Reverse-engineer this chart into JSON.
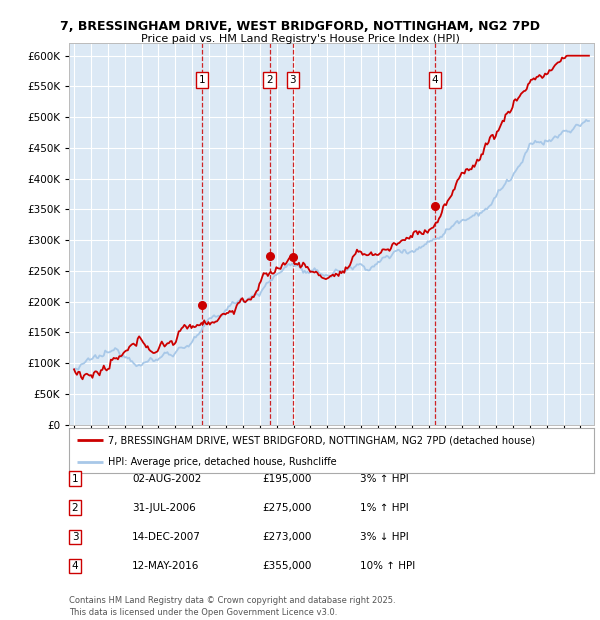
{
  "title_line1": "7, BRESSINGHAM DRIVE, WEST BRIDGFORD, NOTTINGHAM, NG2 7PD",
  "title_line2": "Price paid vs. HM Land Registry's House Price Index (HPI)",
  "background_color": "#ffffff",
  "plot_bg_color": "#dce9f5",
  "grid_color": "#ffffff",
  "sale_dates_num": [
    2002.583,
    2006.583,
    2007.958,
    2016.375
  ],
  "sale_prices": [
    195000,
    275000,
    273000,
    355000
  ],
  "sale_labels": [
    "1",
    "2",
    "3",
    "4"
  ],
  "sale_table": [
    {
      "label": "1",
      "date": "02-AUG-2002",
      "price": "£195,000",
      "change": "3% ↑ HPI"
    },
    {
      "label": "2",
      "date": "31-JUL-2006",
      "price": "£275,000",
      "change": "1% ↑ HPI"
    },
    {
      "label": "3",
      "date": "14-DEC-2007",
      "price": "£273,000",
      "change": "3% ↓ HPI"
    },
    {
      "label": "4",
      "date": "12-MAY-2016",
      "price": "£355,000",
      "change": "10% ↑ HPI"
    }
  ],
  "legend_line1": "7, BRESSINGHAM DRIVE, WEST BRIDGFORD, NOTTINGHAM, NG2 7PD (detached house)",
  "legend_line2": "HPI: Average price, detached house, Rushcliffe",
  "footnote": "Contains HM Land Registry data © Crown copyright and database right 2025.\nThis data is licensed under the Open Government Licence v3.0.",
  "hpi_color": "#a8c8e8",
  "property_color": "#cc0000",
  "ylim_min": 0,
  "ylim_max": 620000,
  "ytick_step": 50000,
  "x_start_year": 1995,
  "x_end_year": 2025
}
